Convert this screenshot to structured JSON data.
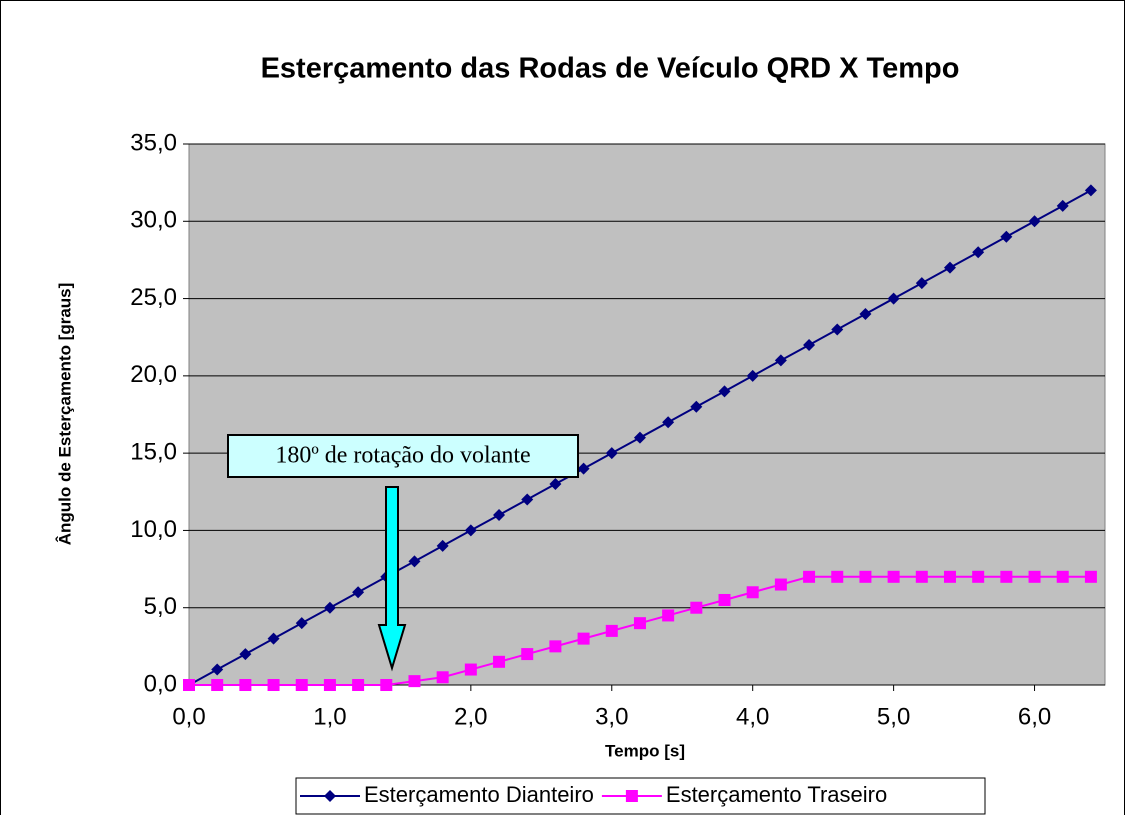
{
  "chart_data": {
    "type": "line",
    "title": "Esterçamento das Rodas de Veículo QRD X Tempo",
    "xlabel": "Tempo [s]",
    "ylabel": "Ângulo de Esterçamento [graus]",
    "annotation": "180º de rotação do volante",
    "x": [
      0,
      0.2,
      0.4,
      0.6,
      0.8,
      1.0,
      1.2,
      1.4,
      1.6,
      1.8,
      2.0,
      2.2,
      2.4,
      2.6,
      2.8,
      3.0,
      3.2,
      3.4,
      3.6,
      3.8,
      4.0,
      4.2,
      4.4,
      4.6,
      4.8,
      5.0,
      5.2,
      5.4,
      5.6,
      5.8,
      6.0,
      6.2,
      6.4
    ],
    "series": [
      {
        "name": "Esterçamento Dianteiro",
        "color": "#000080",
        "marker": "diamond",
        "values": [
          0,
          1,
          2,
          3,
          4,
          5,
          6,
          7,
          8,
          9,
          10,
          11,
          12,
          13,
          14,
          15,
          16,
          17,
          18,
          19,
          20,
          21,
          22,
          23,
          24,
          25,
          26,
          27,
          28,
          29,
          30,
          31,
          32
        ]
      },
      {
        "name": "Esterçamento Traseiro",
        "color": "#ff00ff",
        "marker": "square",
        "values": [
          0,
          0,
          0,
          0,
          0,
          0,
          0,
          0,
          0.25,
          0.5,
          1.0,
          1.5,
          2.0,
          2.5,
          3.0,
          3.5,
          4.0,
          4.5,
          5.0,
          5.5,
          6.0,
          6.5,
          7,
          7,
          7,
          7,
          7,
          7,
          7,
          7,
          7,
          7,
          7
        ]
      }
    ],
    "xlim": [
      0,
      6.5
    ],
    "xticks": [
      {
        "value": 0,
        "label": "0,0"
      },
      {
        "value": 1,
        "label": "1,0"
      },
      {
        "value": 2,
        "label": "2,0"
      },
      {
        "value": 3,
        "label": "3,0"
      },
      {
        "value": 4,
        "label": "4,0"
      },
      {
        "value": 5,
        "label": "5,0"
      },
      {
        "value": 6,
        "label": "6,0"
      }
    ],
    "ylim": [
      0,
      35
    ],
    "yticks": [
      {
        "value": 0,
        "label": "0,0"
      },
      {
        "value": 5,
        "label": "5,0"
      },
      {
        "value": 10,
        "label": "10,0"
      },
      {
        "value": 15,
        "label": "15,0"
      },
      {
        "value": 20,
        "label": "20,0"
      },
      {
        "value": 25,
        "label": "25,0"
      },
      {
        "value": 30,
        "label": "30,0"
      },
      {
        "value": 35,
        "label": "35,0"
      }
    ],
    "grid": true,
    "legend": "bottom"
  }
}
